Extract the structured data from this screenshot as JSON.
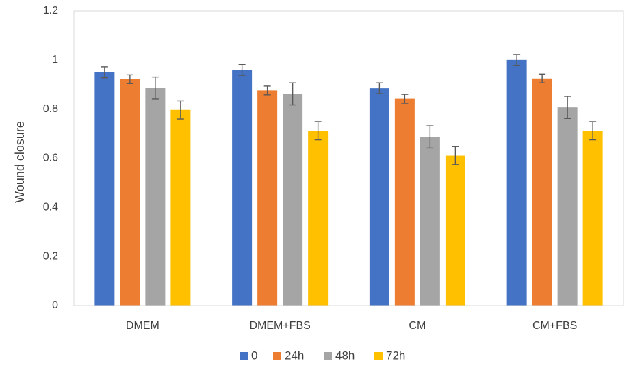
{
  "chart_data": {
    "type": "bar",
    "title": "",
    "xlabel": "",
    "ylabel": "Wound closure",
    "ylim": [
      0,
      1.2
    ],
    "yticks": [
      "0",
      "0.2",
      "0.4",
      "0.6",
      "0.8",
      "1",
      "1.2"
    ],
    "grid": false,
    "legend_position": "bottom",
    "categories": [
      "DMEM",
      "DMEM+FBS",
      "CM",
      "CM+FBS"
    ],
    "series": [
      {
        "name": "0",
        "color": "#4472C4",
        "values": [
          0.95,
          0.96,
          0.885,
          1.0
        ],
        "errors": [
          0.022,
          0.022,
          0.022,
          0.022
        ]
      },
      {
        "name": "24h",
        "color": "#ED7D31",
        "values": [
          0.922,
          0.876,
          0.842,
          0.925
        ],
        "errors": [
          0.018,
          0.018,
          0.018,
          0.018
        ]
      },
      {
        "name": "48h",
        "color": "#A5A5A5",
        "values": [
          0.886,
          0.862,
          0.687,
          0.807
        ],
        "errors": [
          0.045,
          0.045,
          0.045,
          0.045
        ]
      },
      {
        "name": "72h",
        "color": "#FFC000",
        "values": [
          0.797,
          0.712,
          0.611,
          0.712
        ],
        "errors": [
          0.037,
          0.037,
          0.037,
          0.037
        ]
      }
    ]
  }
}
